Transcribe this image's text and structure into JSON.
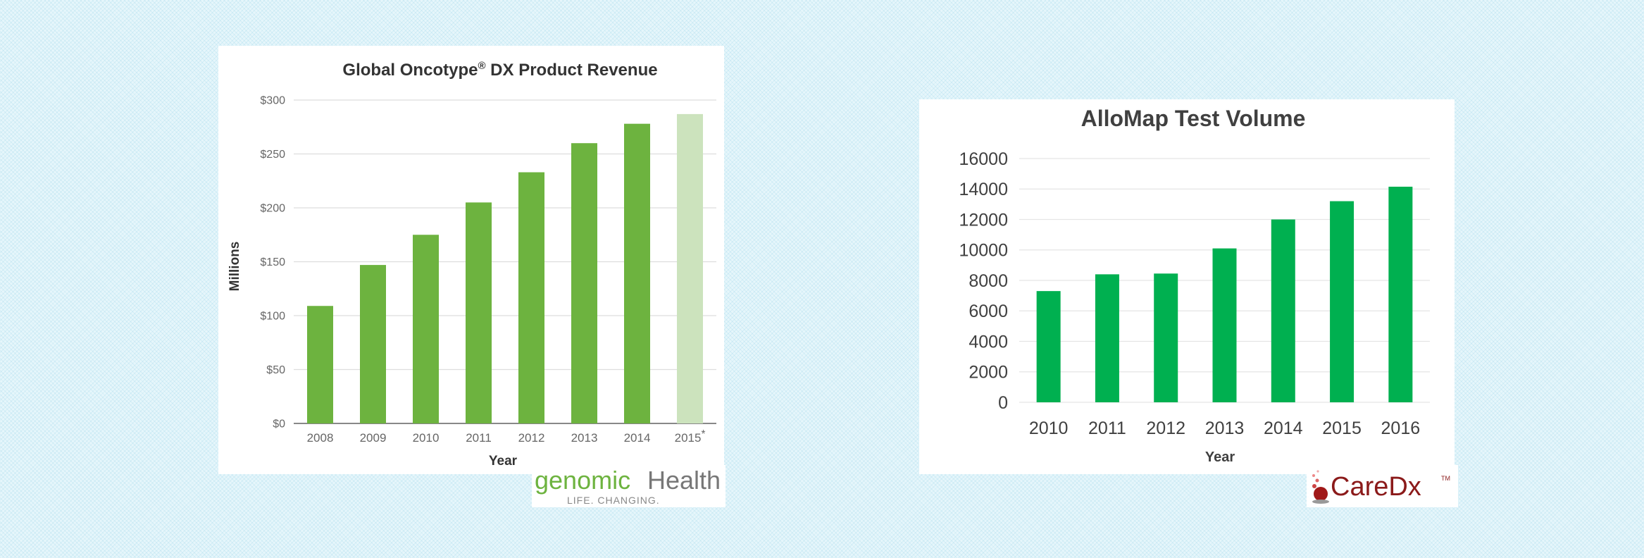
{
  "chart_data": [
    {
      "type": "bar",
      "title": "Global Oncotype",
      "title_mark": "®",
      "title_suffix": " DX Product Revenue",
      "xlabel": "Year",
      "ylabel": "Millions",
      "categories": [
        "2008",
        "2009",
        "2010",
        "2011",
        "2012",
        "2013",
        "2014",
        "2015"
      ],
      "category_marks": [
        "",
        "",
        "",
        "",
        "",
        "",
        "",
        "*"
      ],
      "values": [
        109,
        147,
        175,
        205,
        233,
        260,
        278,
        287
      ],
      "ylim": [
        0,
        300
      ],
      "yticks": [
        0,
        50,
        100,
        150,
        200,
        250,
        300
      ],
      "ytick_labels": [
        "$0",
        "$50",
        "$100",
        "$150",
        "$200",
        "$250",
        "$300"
      ],
      "grid": true,
      "colors": {
        "bar": "#6db33f",
        "bar_estimate": "#cce3bd",
        "axis": "#888888",
        "grid": "#dddddd"
      }
    },
    {
      "type": "bar",
      "title": "AlloMap Test Volume",
      "xlabel": "Year",
      "ylabel": "",
      "categories": [
        "2010",
        "2011",
        "2012",
        "2013",
        "2014",
        "2015",
        "2016"
      ],
      "values": [
        7300,
        8400,
        8450,
        10100,
        12000,
        13200,
        14150
      ],
      "ylim": [
        0,
        16000
      ],
      "yticks": [
        0,
        2000,
        4000,
        6000,
        8000,
        10000,
        12000,
        14000,
        16000
      ],
      "ytick_labels": [
        "0",
        "2000",
        "4000",
        "6000",
        "8000",
        "10000",
        "12000",
        "14000",
        "16000"
      ],
      "grid": true,
      "colors": {
        "bar": "#00b050",
        "grid": "#e5e5e5"
      }
    }
  ],
  "logos": {
    "genomic_health": {
      "word1": "genomic",
      "word2": "Health",
      "tagline": "LIFE. CHANGING.",
      "color1": "#6db33f",
      "color2": "#777777"
    },
    "caredx": {
      "name": "CareDx",
      "mark": "TM",
      "color": "#8b1a1a"
    }
  }
}
